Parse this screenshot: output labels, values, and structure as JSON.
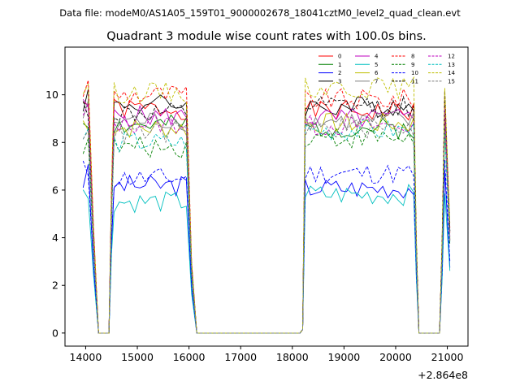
{
  "figure": {
    "subtitle": "Data file: modeM0/AS1A05_159T01_9000002678_18041cztM0_level2_quad_clean.evt"
  },
  "chart_data": {
    "type": "line",
    "title": "Quadrant 3 module wise count rates with 100.0s bins.",
    "xlabel": "",
    "ylabel": "",
    "x_offset_label": "+2.864e8",
    "xlim": [
      13600,
      21400
    ],
    "ylim": [
      -0.55,
      12.0
    ],
    "xticks": [
      14000,
      15000,
      16000,
      17000,
      18000,
      19000,
      20000,
      21000
    ],
    "yticks": [
      0,
      2,
      4,
      6,
      8,
      10
    ],
    "legend": {
      "placement": "top-right",
      "columns": 4
    },
    "series": [
      {
        "name": "0",
        "color": "#ff0000",
        "dash": "solid",
        "level_a": 9.4,
        "level_b": 9.3
      },
      {
        "name": "1",
        "color": "#008000",
        "dash": "solid",
        "level_a": 8.7,
        "level_b": 8.6
      },
      {
        "name": "2",
        "color": "#0000ff",
        "dash": "solid",
        "level_a": 6.2,
        "level_b": 6.1
      },
      {
        "name": "3",
        "color": "#000000",
        "dash": "solid",
        "level_a": 9.6,
        "level_b": 9.5
      },
      {
        "name": "4",
        "color": "#bf00bf",
        "dash": "solid",
        "level_a": 9.1,
        "level_b": 9.0
      },
      {
        "name": "5",
        "color": "#00bfbf",
        "dash": "solid",
        "level_a": 5.5,
        "level_b": 5.8
      },
      {
        "name": "6",
        "color": "#bfbf00",
        "dash": "solid",
        "level_a": 8.6,
        "level_b": 8.8
      },
      {
        "name": "7",
        "color": "#808080",
        "dash": "solid",
        "level_a": 8.9,
        "level_b": 8.9
      },
      {
        "name": "8",
        "color": "#ff0000",
        "dash": "dashed",
        "level_a": 10.0,
        "level_b": 9.8
      },
      {
        "name": "9",
        "color": "#008000",
        "dash": "dashed",
        "level_a": 7.8,
        "level_b": 8.2
      },
      {
        "name": "10",
        "color": "#0000ff",
        "dash": "dashed",
        "level_a": 6.5,
        "level_b": 6.7
      },
      {
        "name": "11",
        "color": "#000000",
        "dash": "dashed",
        "level_a": 9.2,
        "level_b": 9.5
      },
      {
        "name": "12",
        "color": "#bf00bf",
        "dash": "dashed",
        "level_a": 8.8,
        "level_b": 8.7
      },
      {
        "name": "13",
        "color": "#00bfbf",
        "dash": "dashed",
        "level_a": 8.0,
        "level_b": 8.5
      },
      {
        "name": "14",
        "color": "#bfbf00",
        "dash": "dashed",
        "level_a": 10.1,
        "level_b": 10.3
      },
      {
        "name": "15",
        "color": "#808080",
        "dash": "dashed",
        "level_a": 8.4,
        "level_b": 8.6
      }
    ],
    "segments": {
      "a1": [
        13950,
        14050
      ],
      "gap1": [
        14250,
        14450
      ],
      "a2": [
        14550,
        15950
      ],
      "gap2": [
        16150,
        18150
      ],
      "b1": [
        18250,
        20350
      ],
      "gap3": [
        20450,
        20850
      ],
      "b2": [
        20950,
        21050
      ]
    }
  }
}
